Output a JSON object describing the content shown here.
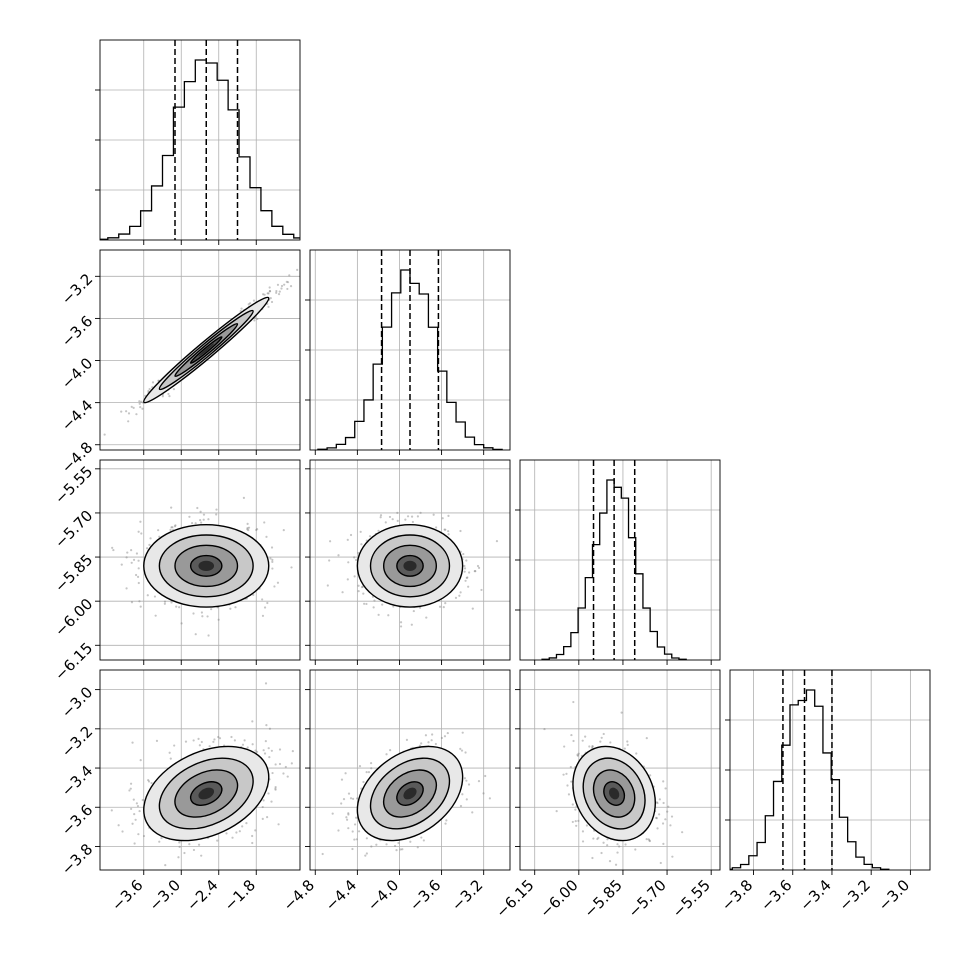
{
  "chart_data": {
    "type": "corner",
    "parameters": [
      {
        "range": [
          -4.3,
          -1.1
        ],
        "ticks": [
          -3.6,
          -3.0,
          -2.4,
          -1.8
        ],
        "tick_labels": [
          "−3.6",
          "−3.0",
          "−2.4",
          "−1.8"
        ],
        "mean": -2.6,
        "sd": 0.5,
        "quantiles": [
          -3.1,
          -2.6,
          -2.1
        ]
      },
      {
        "range": [
          -4.85,
          -2.95
        ],
        "ticks": [
          -4.8,
          -4.4,
          -4.0,
          -3.6,
          -3.2
        ],
        "tick_labels": [
          "−4.8",
          "−4.4",
          "−4.0",
          "−3.6",
          "−3.2"
        ],
        "mean": -3.9,
        "sd": 0.25,
        "quantiles": [
          -4.17,
          -3.9,
          -3.63
        ]
      },
      {
        "range": [
          -6.2,
          -5.52
        ],
        "ticks": [
          -6.15,
          -6.0,
          -5.85,
          -5.7,
          -5.55
        ],
        "tick_labels": [
          "−6.15",
          "−6.00",
          "−5.85",
          "−5.70",
          "−5.55"
        ],
        "mean": -5.88,
        "sd": 0.07,
        "quantiles": [
          -5.95,
          -5.88,
          -5.81
        ]
      },
      {
        "range": [
          -3.92,
          -2.9
        ],
        "ticks": [
          -3.8,
          -3.6,
          -3.4,
          -3.2,
          -3.0
        ],
        "tick_labels": [
          "−3.8",
          "−3.6",
          "−3.4",
          "−3.2",
          "−3.0"
        ],
        "mean": -3.53,
        "sd": 0.12,
        "quantiles": [
          -3.65,
          -3.54,
          -3.4
        ]
      }
    ],
    "pairs": [
      {
        "row": 1,
        "col": 0,
        "correlation": 0.98
      },
      {
        "row": 2,
        "col": 0,
        "correlation": 0.0
      },
      {
        "row": 2,
        "col": 1,
        "correlation": 0.0
      },
      {
        "row": 3,
        "col": 0,
        "correlation": 0.35
      },
      {
        "row": 3,
        "col": 1,
        "correlation": 0.35
      },
      {
        "row": 3,
        "col": 2,
        "correlation": -0.2
      }
    ],
    "histogram_bins": 20,
    "contour_levels_sigma": [
      0.5,
      1.0,
      1.5,
      2.0
    ],
    "grid": true,
    "colors": {
      "density": "#000000",
      "scatter": "#7f7f7f",
      "grid": "#b0b0b0",
      "frame": "#000000"
    }
  }
}
